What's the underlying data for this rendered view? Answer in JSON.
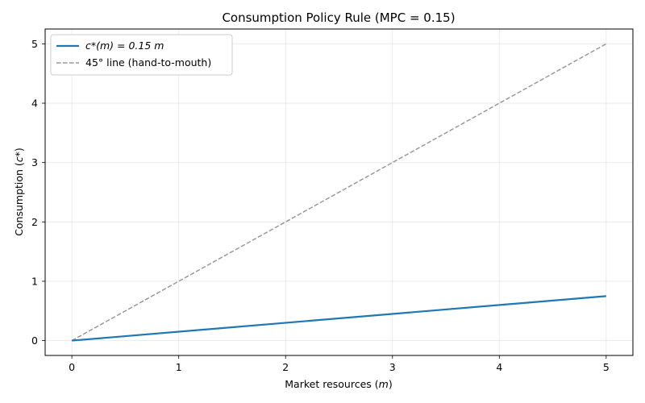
{
  "chart_data": {
    "type": "line",
    "title": "Consumption Policy Rule (MPC = 0.15)",
    "xlabel": "Market resources (m)",
    "ylabel": "Consumption (c*)",
    "xlim": [
      -0.25,
      5.25
    ],
    "ylim": [
      -0.25,
      5.25
    ],
    "xticks": [
      0,
      1,
      2,
      3,
      4,
      5
    ],
    "yticks": [
      0,
      1,
      2,
      3,
      4,
      5
    ],
    "grid": true,
    "legend_position": "top-left",
    "series": [
      {
        "name": "c*(m) = 0.15 m",
        "style": "solid",
        "color": "#1f77b4",
        "x": [
          0,
          5
        ],
        "y": [
          0,
          0.75
        ]
      },
      {
        "name": "45° line (hand-to-mouth)",
        "style": "dashed",
        "color": "#999999",
        "x": [
          0,
          5
        ],
        "y": [
          0,
          5
        ]
      }
    ]
  }
}
